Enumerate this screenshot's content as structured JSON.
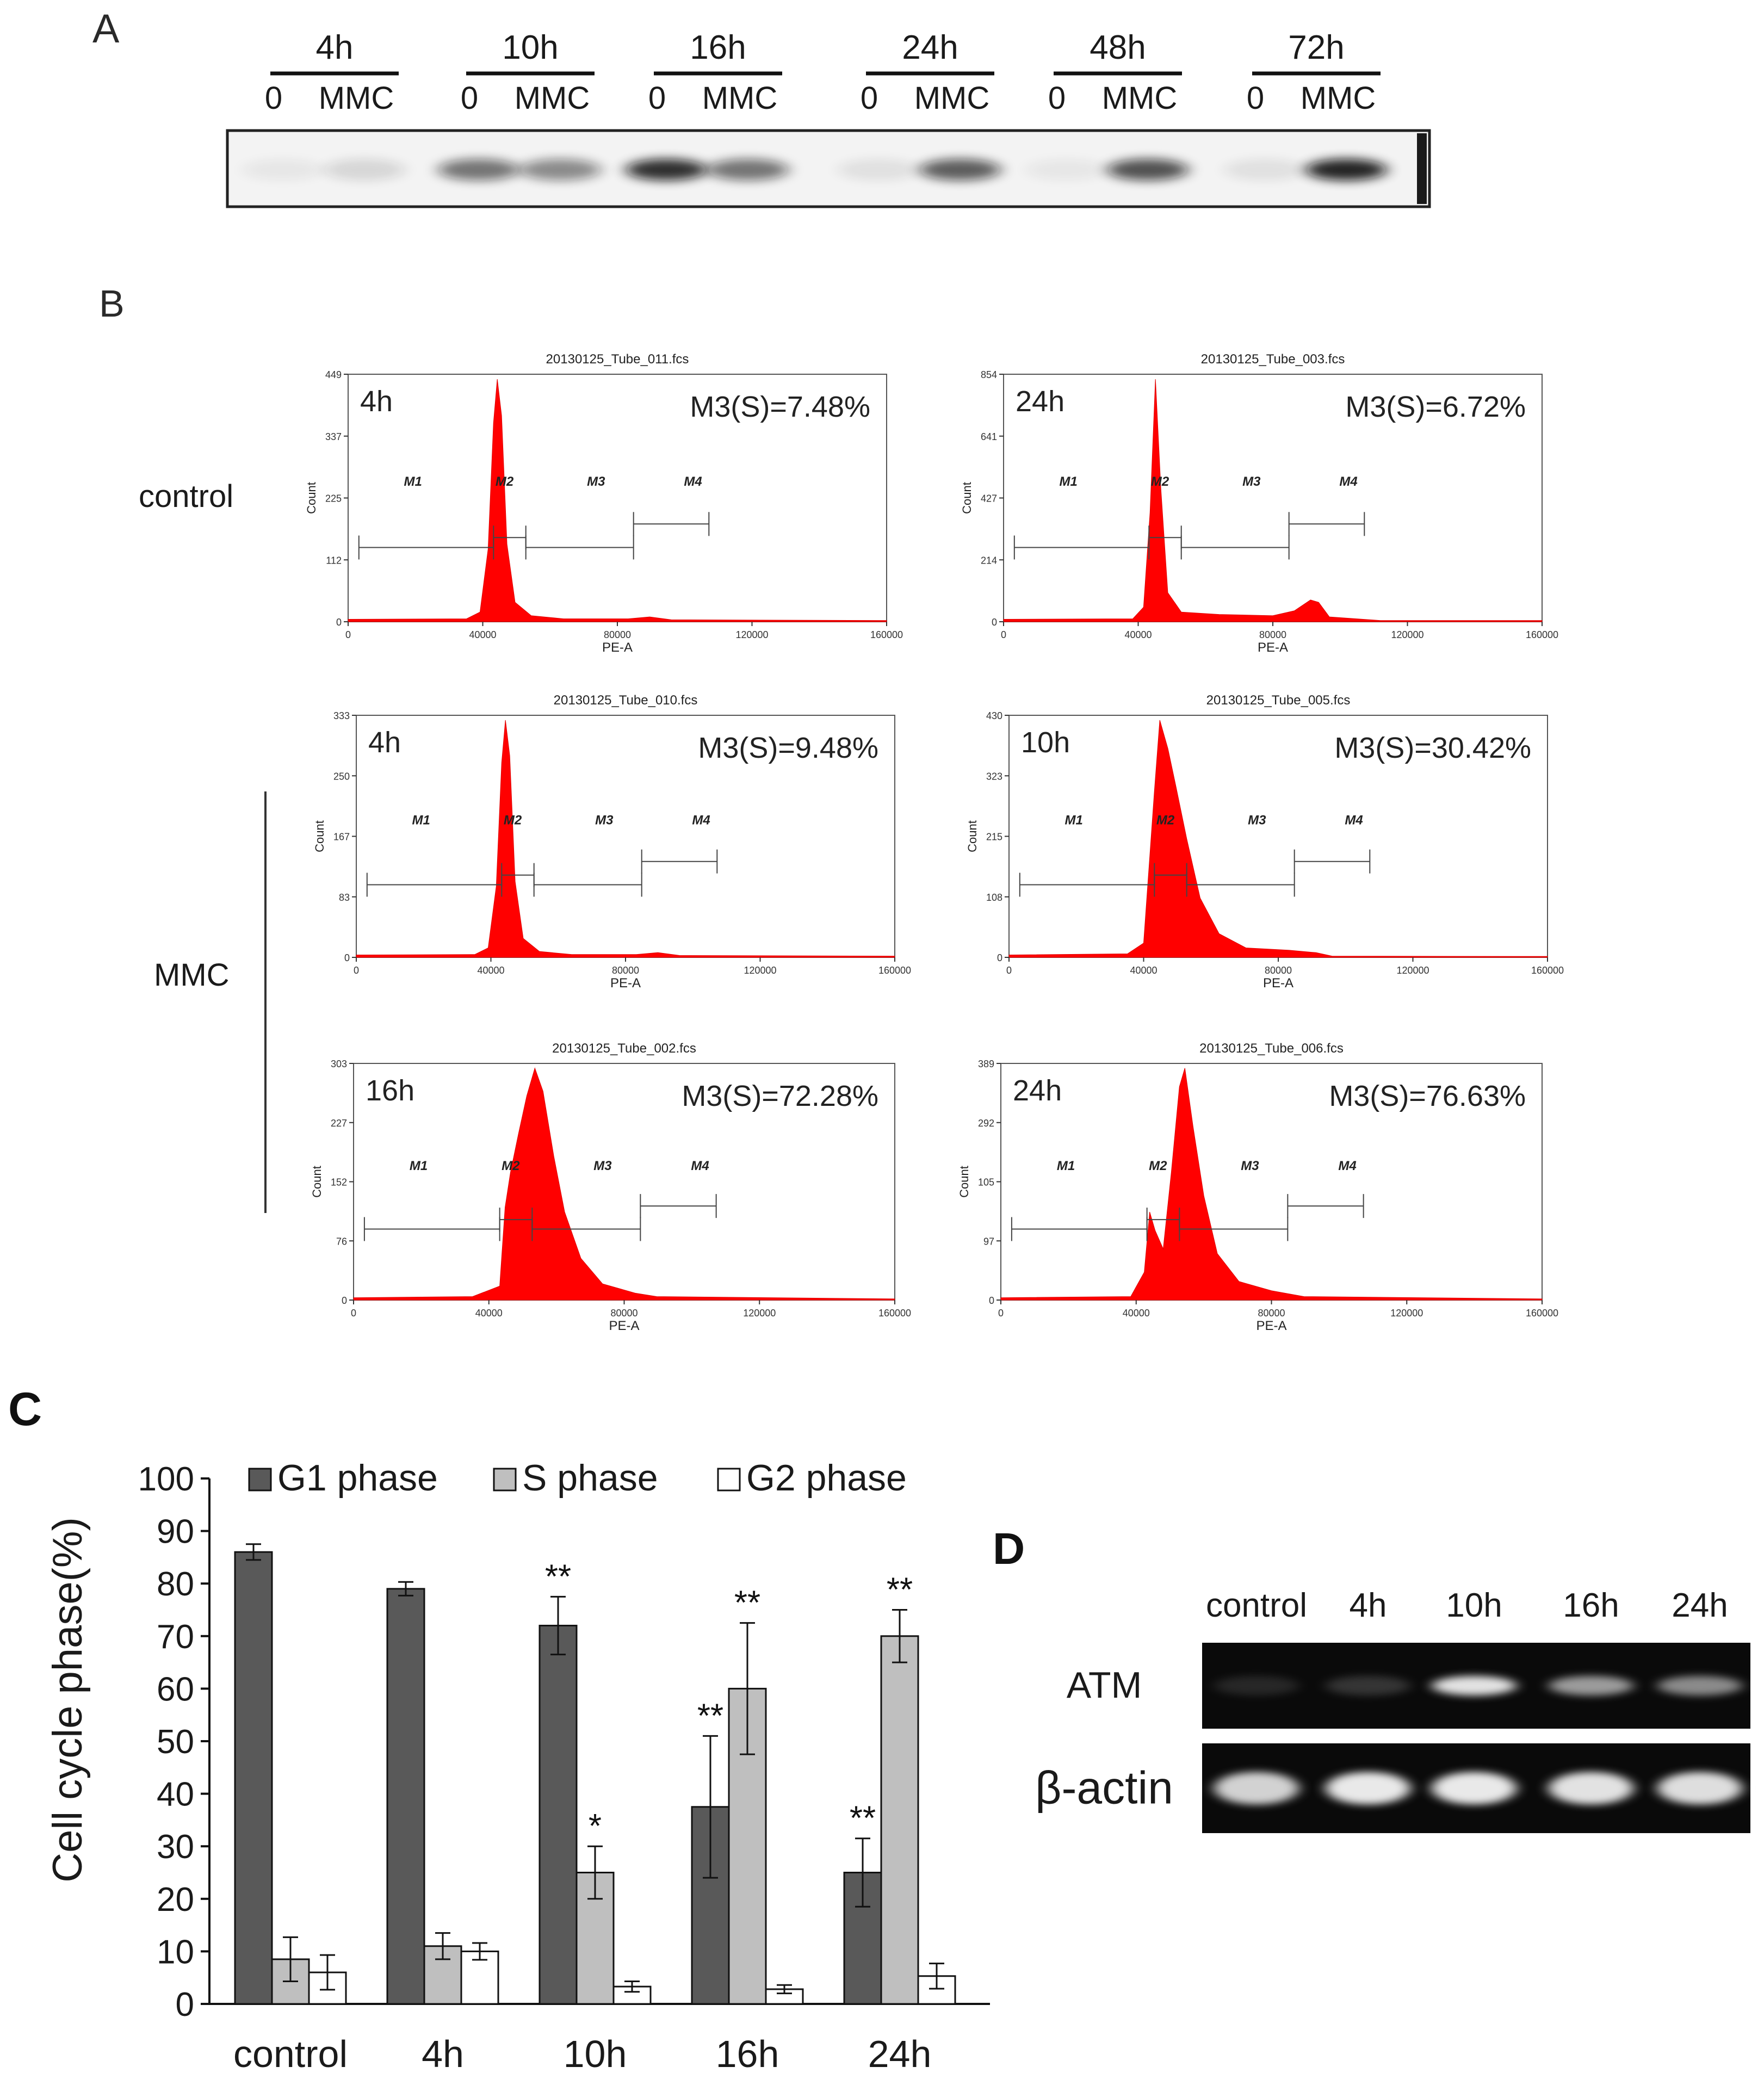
{
  "panel_a": {
    "letter": "A",
    "timepoints": [
      "4h",
      "10h",
      "16h",
      "24h",
      "48h",
      "72h"
    ],
    "lane_labels": [
      "0",
      "MMC"
    ],
    "band_intensity": [
      [
        0.05,
        0.12
      ],
      [
        0.55,
        0.45
      ],
      [
        0.85,
        0.55
      ],
      [
        0.08,
        0.65
      ],
      [
        0.05,
        0.7
      ],
      [
        0.08,
        0.9
      ]
    ]
  },
  "panel_b": {
    "letter": "B",
    "row_label_control": "control",
    "row_label_mmc": "MMC",
    "y_axis_title": "Count",
    "x_axis_title": "PE-A",
    "x_ticks": [
      "0",
      "40000",
      "80000",
      "120000",
      "160000"
    ],
    "markers": [
      "M1",
      "M2",
      "M3",
      "M4"
    ],
    "plots": [
      {
        "file": "20130125_Tube_011.fcs",
        "time": "4h",
        "s_phase": "M3(S)=7.48%",
        "y_ticks": [
          "0",
          "112",
          "225",
          "337",
          "449"
        ],
        "shape": "narrow"
      },
      {
        "file": "20130125_Tube_003.fcs",
        "time": "24h",
        "s_phase": "M3(S)=6.72%",
        "y_ticks": [
          "0",
          "214",
          "427",
          "641",
          "854"
        ],
        "shape": "narrow_g2"
      },
      {
        "file": "20130125_Tube_010.fcs",
        "time": "4h",
        "s_phase": "M3(S)=9.48%",
        "y_ticks": [
          "0",
          "83",
          "167",
          "250",
          "333"
        ],
        "shape": "narrow"
      },
      {
        "file": "20130125_Tube_005.fcs",
        "time": "10h",
        "s_phase": "M3(S)=30.42%",
        "y_ticks": [
          "0",
          "108",
          "215",
          "323",
          "430"
        ],
        "shape": "wide"
      },
      {
        "file": "20130125_Tube_002.fcs",
        "time": "16h",
        "s_phase": "M3(S)=72.28%",
        "y_ticks": [
          "0",
          "76",
          "152",
          "227",
          "303"
        ],
        "shape": "broad"
      },
      {
        "file": "20130125_Tube_006.fcs",
        "time": "24h",
        "s_phase": "M3(S)=76.63%",
        "y_ticks": [
          "0",
          "97",
          "105",
          "292",
          "389"
        ],
        "shape": "shifted"
      }
    ]
  },
  "panel_c": {
    "letter": "C",
    "chart_data": {
      "type": "bar",
      "title": "",
      "ylabel": "Cell cycle phase(%)",
      "xlabel": "",
      "ylim": [
        0,
        100
      ],
      "y_ticks": [
        0,
        10,
        20,
        30,
        40,
        50,
        60,
        70,
        80,
        90,
        100
      ],
      "categories": [
        "control",
        "4h",
        "10h",
        "16h",
        "24h"
      ],
      "legend_position": "top",
      "series": [
        {
          "name": "G1 phase",
          "color": "#595959",
          "values": [
            86,
            79,
            72,
            37.5,
            25
          ],
          "errors": [
            1.5,
            1.3,
            5.5,
            13.5,
            6.5
          ],
          "significance": [
            "",
            "",
            "**",
            "**",
            "**"
          ]
        },
        {
          "name": "S phase",
          "color": "#bfbfbf",
          "values": [
            8.5,
            11,
            25,
            60,
            70
          ],
          "errors": [
            4.2,
            2.5,
            5,
            12.5,
            5
          ],
          "significance": [
            "",
            "",
            "*",
            "**",
            "**"
          ]
        },
        {
          "name": "G2 phase",
          "color": "#ffffff",
          "values": [
            6,
            10,
            3.3,
            2.8,
            5.3
          ],
          "errors": [
            3.3,
            1.6,
            1,
            0.8,
            2.4
          ],
          "significance": [
            "",
            "",
            "",
            "",
            ""
          ]
        }
      ]
    }
  },
  "panel_d": {
    "letter": "D",
    "lanes": [
      "control",
      "4h",
      "10h",
      "16h",
      "24h"
    ],
    "rows": [
      {
        "label": "ATM",
        "intensity": [
          0.12,
          0.18,
          0.92,
          0.62,
          0.55
        ]
      },
      {
        "label": "β-actin",
        "intensity": [
          0.85,
          0.95,
          0.95,
          0.92,
          0.9
        ]
      }
    ]
  }
}
